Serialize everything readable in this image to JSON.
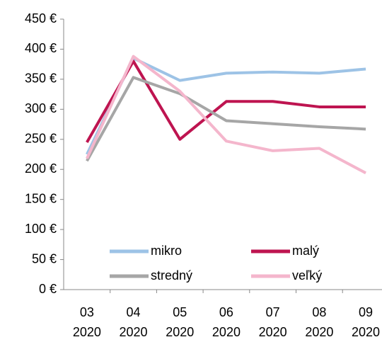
{
  "chart_data": {
    "type": "line",
    "categories": [
      [
        "03",
        "2020"
      ],
      [
        "04",
        "2020"
      ],
      [
        "05",
        "2020"
      ],
      [
        "06",
        "2020"
      ],
      [
        "07",
        "2020"
      ],
      [
        "08",
        "2020"
      ],
      [
        "09",
        "2020"
      ]
    ],
    "series": [
      {
        "name": "mikro",
        "color": "#9dc3e6",
        "values": [
          225,
          385,
          348,
          360,
          362,
          360,
          367
        ]
      },
      {
        "name": "malý",
        "color": "#be1450",
        "values": [
          245,
          380,
          250,
          313,
          313,
          304,
          304
        ]
      },
      {
        "name": "stredný",
        "color": "#a6a6a6",
        "values": [
          214,
          353,
          326,
          281,
          276,
          271,
          267
        ]
      },
      {
        "name": "veľký",
        "color": "#f4b6cc",
        "values": [
          218,
          388,
          330,
          247,
          231,
          235,
          194
        ]
      }
    ],
    "ylim": [
      0,
      450
    ],
    "yticks": [
      {
        "value": 0,
        "label": "0 €"
      },
      {
        "value": 50,
        "label": "50 €"
      },
      {
        "value": 100,
        "label": "100 €"
      },
      {
        "value": 150,
        "label": "150 €"
      },
      {
        "value": 200,
        "label": "200 €"
      },
      {
        "value": 250,
        "label": "250 €"
      },
      {
        "value": 300,
        "label": "300 €"
      },
      {
        "value": 350,
        "label": "350 €"
      },
      {
        "value": 400,
        "label": "400 €"
      },
      {
        "value": 450,
        "label": "450 €"
      }
    ]
  }
}
